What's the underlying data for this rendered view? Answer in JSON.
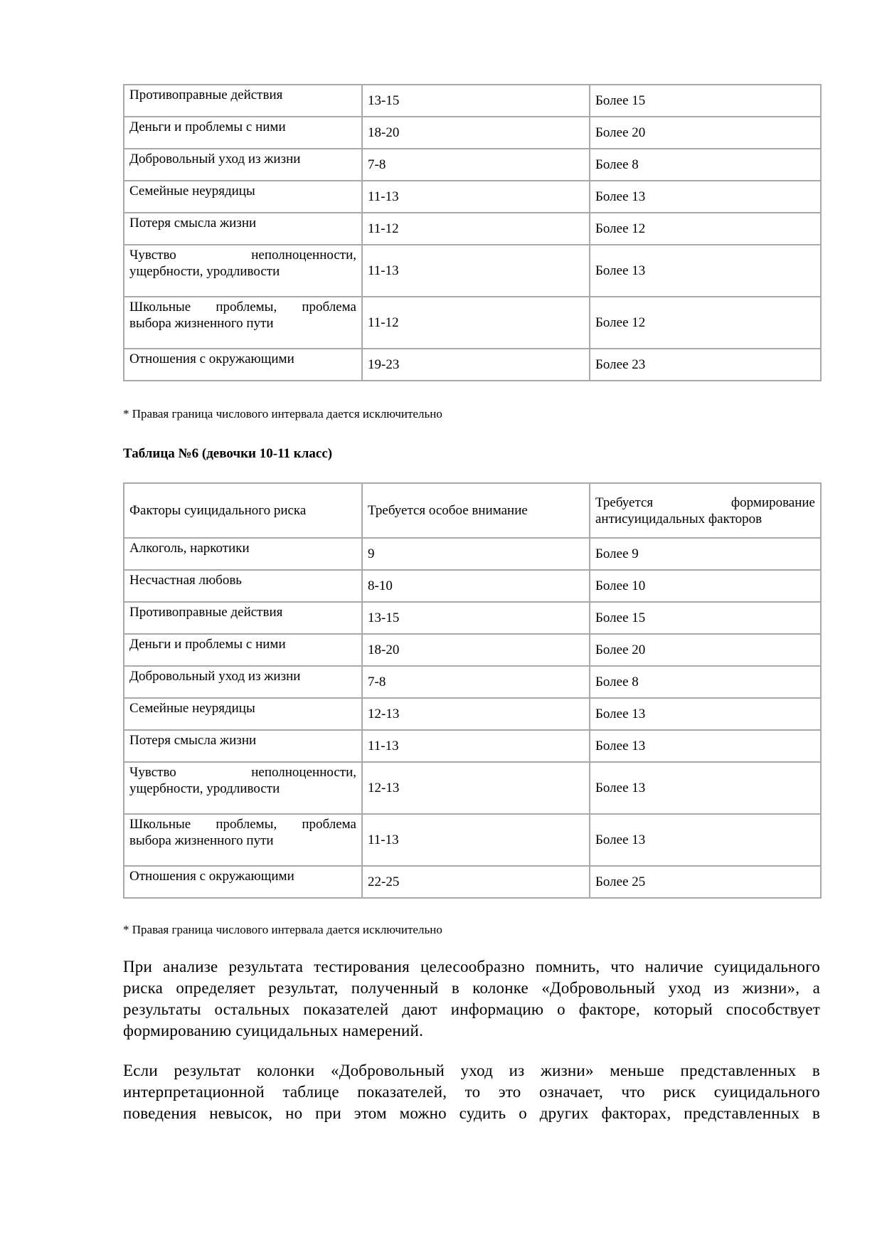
{
  "page": {
    "background": "#ffffff",
    "text_color": "#000000",
    "table_border_color": "#a9a9a9"
  },
  "tables": {
    "continued": {
      "rows": [
        {
          "factor": "Противоправные действия",
          "attention": "13-15",
          "formation": "Более 15"
        },
        {
          "factor": "Деньги и проблемы с ними",
          "attention": "18-20",
          "formation": "Более 20"
        },
        {
          "factor": "Добровольный уход из жизни",
          "attention": "7-8",
          "formation": "Более 8"
        },
        {
          "factor": "Семейные неурядицы",
          "attention": "11-13",
          "formation": "Более 13"
        },
        {
          "factor": "Потеря смысла жизни",
          "attention": "11-12",
          "formation": "Более 12"
        },
        {
          "factor": [
            "Чувство неполноценности,",
            "ущербности, уродливости"
          ],
          "attention": "11-13",
          "formation": "Более 13"
        },
        {
          "factor": [
            "Школьные проблемы, проблема",
            "выбора жизненного пути"
          ],
          "attention": "11-12",
          "formation": "Более 12"
        },
        {
          "factor": "Отношения с окружающими",
          "attention": "19-23",
          "formation": "Более 23"
        }
      ]
    },
    "table6": {
      "title": "Таблица №6 (девочки 10-11 класс)",
      "headers": {
        "factor": "Факторы суицидального риска",
        "attention": "Требуется особое внимание",
        "formation": [
          "Требуется формирование",
          "антисуицидальных факторов"
        ]
      },
      "rows": [
        {
          "factor": "Алкоголь, наркотики",
          "attention": "9",
          "formation": "Более 9"
        },
        {
          "factor": "Несчастная любовь",
          "attention": "8-10",
          "formation": "Более 10"
        },
        {
          "factor": "Противоправные действия",
          "attention": "13-15",
          "formation": "Более 15"
        },
        {
          "factor": "Деньги и проблемы с ними",
          "attention": "18-20",
          "formation": "Более 20"
        },
        {
          "factor": "Добровольный уход из жизни",
          "attention": "7-8",
          "formation": "Более 8"
        },
        {
          "factor": "Семейные неурядицы",
          "attention": "12-13",
          "formation": "Более 13"
        },
        {
          "factor": "Потеря смысла жизни",
          "attention": "11-13",
          "formation": "Более 13"
        },
        {
          "factor": [
            "Чувство неполноценности,",
            "ущербности, уродливости"
          ],
          "attention": "12-13",
          "formation": "Более 13"
        },
        {
          "factor": [
            "Школьные проблемы, проблема",
            "выбора жизненного пути"
          ],
          "attention": "11-13",
          "formation": "Более 13"
        },
        {
          "factor": "Отношения с окружающими",
          "attention": "22-25",
          "formation": "Более 25"
        }
      ]
    }
  },
  "footnotes": [
    "* Правая граница числового интервала дается исключительно",
    "* Правая граница числового интервала дается исключительно"
  ],
  "paragraphs": [
    [
      "При анализе результата тестирования целесообразно помнить, что наличие суицидального",
      "риска определяет результат, полученный в колонке «Добровольный уход из жизни», а",
      "результаты остальных показателей дают информацию о факторе, который способствует",
      "формированию суицидальных намерений."
    ],
    [
      "Если результат колонки «Добровольный уход из жизни» меньше представленных в",
      "интерпретационной таблице показателей, то это означает, что риск суицидального",
      "поведения невысок, но при этом можно судить о других факторах, представленных в"
    ]
  ]
}
